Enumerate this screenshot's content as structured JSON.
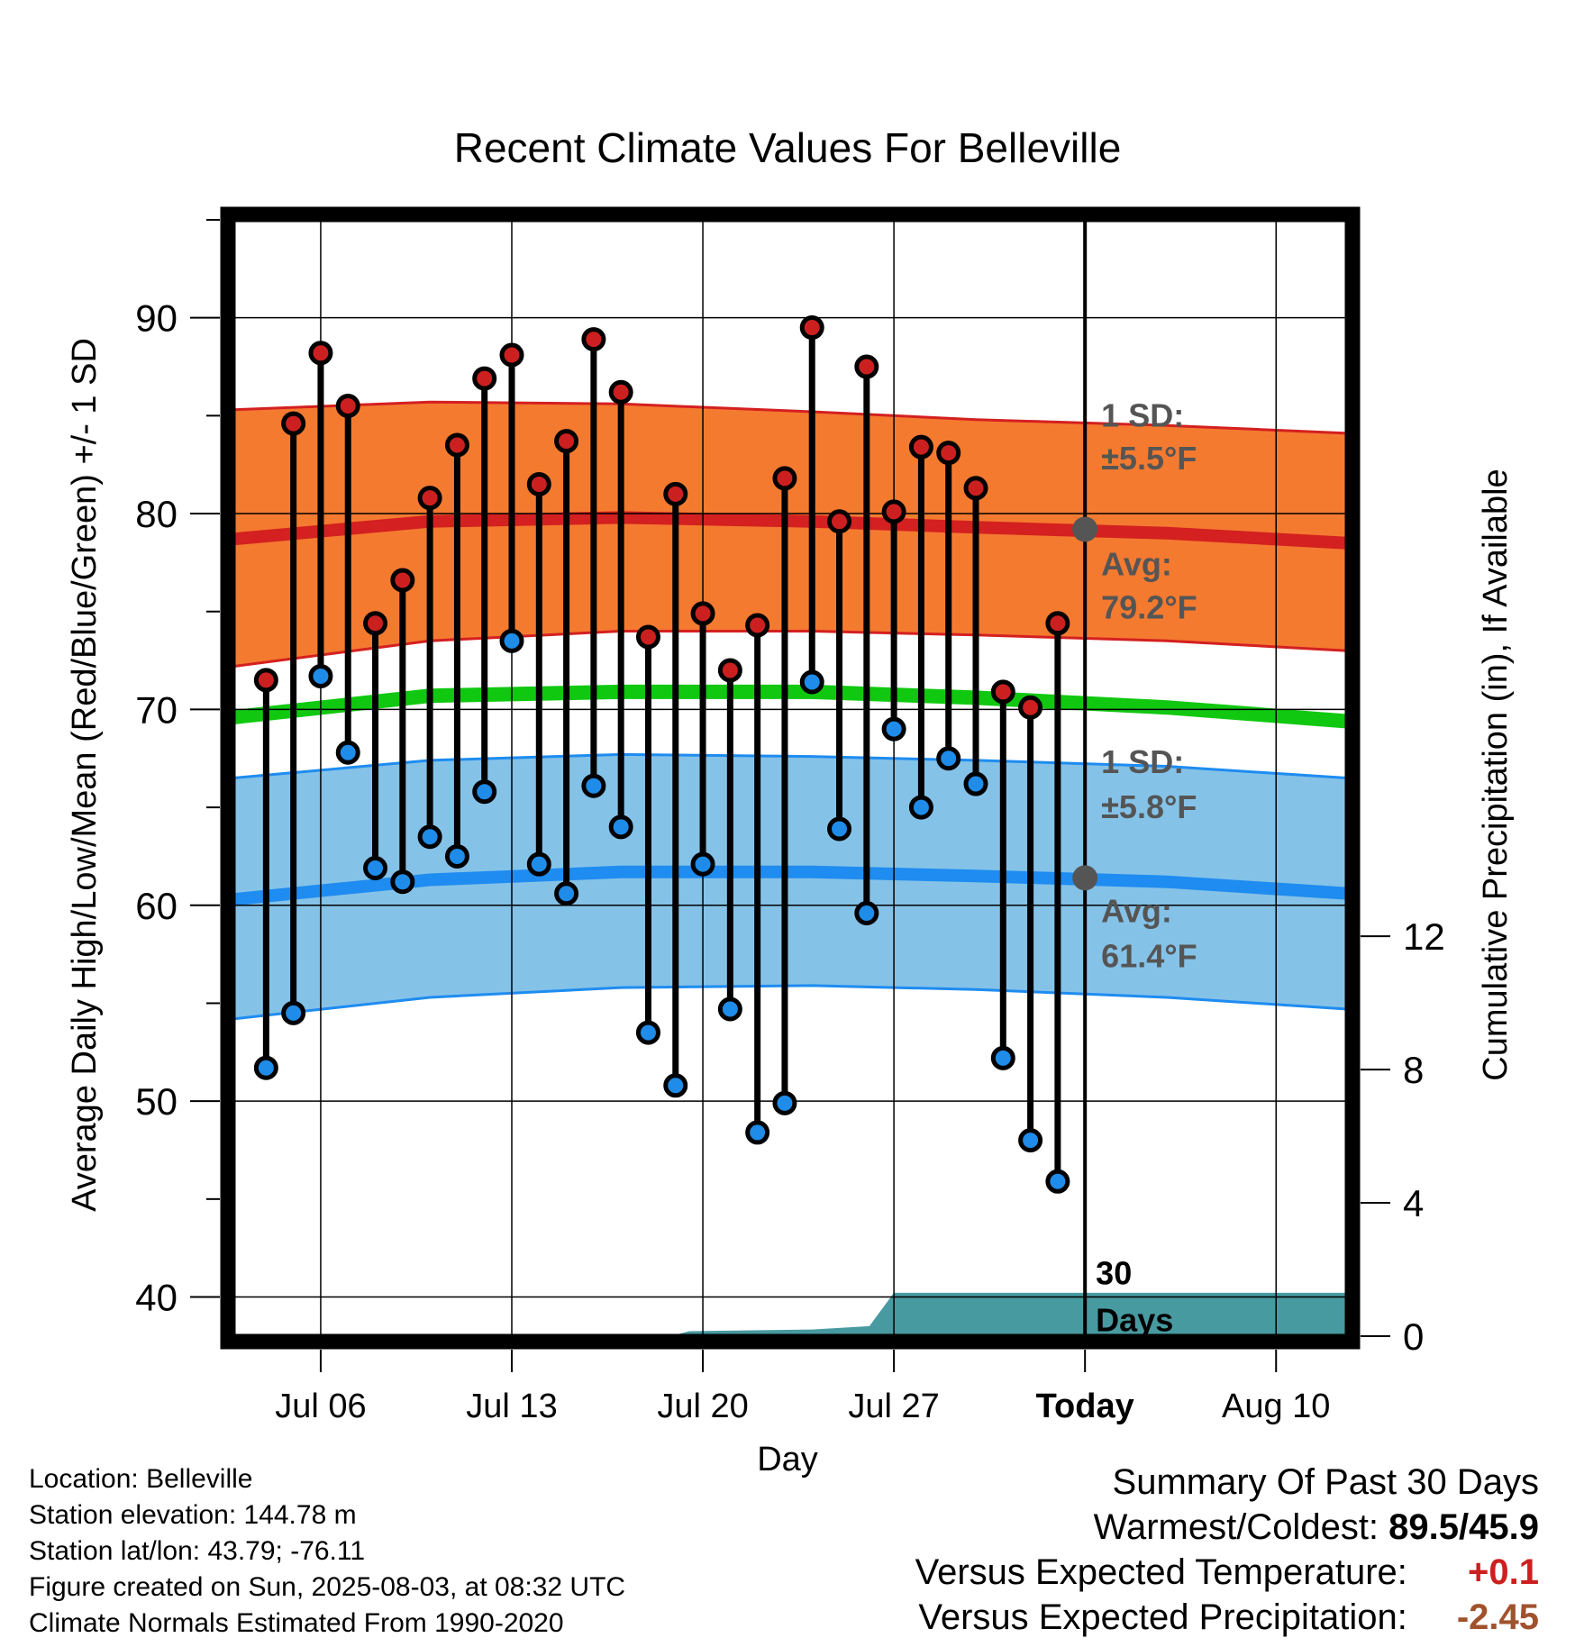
{
  "chart_data": {
    "type": "line",
    "title": "Recent Climate Values For Belleville",
    "xlabel": "Day",
    "ylabel_left": "Average Daily High/Low/Mean (Red/Blue/Green) +/- 1 SD",
    "ylabel_right": "Cumulative Precipitation (in), If Available",
    "x_ticks": [
      {
        "label": "Jul 06",
        "day": 6
      },
      {
        "label": "Jul 13",
        "day": 13
      },
      {
        "label": "Jul 20",
        "day": 20
      },
      {
        "label": "Jul 27",
        "day": 27
      },
      {
        "label": "Today",
        "day": 34
      },
      {
        "label": "Aug 10",
        "day": 41
      }
    ],
    "x_range_days_from_jul1": [
      2.8,
      43.6
    ],
    "today_day": 34,
    "today_label": "Today",
    "temp_ticks": [
      40,
      50,
      60,
      70,
      80,
      90
    ],
    "ylim": [
      38,
      95
    ],
    "precip_ticks": [
      0,
      4,
      8,
      12
    ],
    "precip_range": [
      0,
      33.5
    ],
    "grid": true,
    "series": [
      {
        "name": "Daily High",
        "color": "#cc2020",
        "days": [
          4,
          5,
          6,
          7,
          8,
          9,
          10,
          11,
          12,
          13,
          14,
          15,
          16,
          17,
          18,
          19,
          20,
          21,
          22,
          23,
          24,
          25,
          26,
          27,
          28,
          29,
          30,
          31,
          32,
          33
        ],
        "values": [
          71.5,
          84.6,
          88.2,
          85.5,
          74.4,
          76.6,
          80.8,
          83.5,
          86.9,
          88.1,
          81.5,
          83.7,
          88.9,
          86.2,
          73.7,
          81.0,
          74.9,
          72.0,
          74.3,
          81.8,
          89.5,
          79.6,
          87.5,
          80.1,
          83.4,
          83.1,
          81.3,
          70.9,
          70.1,
          74.4
        ]
      },
      {
        "name": "Daily Low",
        "color": "#1e8ce8",
        "days": [
          4,
          5,
          6,
          7,
          8,
          9,
          10,
          11,
          12,
          13,
          14,
          15,
          16,
          17,
          18,
          19,
          20,
          21,
          22,
          23,
          24,
          25,
          26,
          27,
          28,
          29,
          30,
          31,
          32,
          33
        ],
        "values": [
          51.7,
          54.5,
          71.7,
          67.8,
          61.9,
          61.2,
          63.5,
          62.5,
          65.8,
          73.5,
          62.1,
          60.6,
          66.1,
          64.0,
          53.5,
          50.8,
          62.1,
          54.7,
          48.4,
          49.9,
          71.4,
          63.9,
          59.6,
          69.0,
          65.0,
          67.5,
          66.2,
          52.2,
          48.0,
          45.9
        ]
      },
      {
        "name": "Normal High",
        "color": "#d42020",
        "days": [
          2.8,
          10,
          17,
          24,
          30,
          37,
          43.6
        ],
        "values": [
          78.7,
          79.6,
          79.8,
          79.6,
          79.3,
          79.0,
          78.5
        ]
      },
      {
        "name": "Normal High +1 SD",
        "days": [
          2.8,
          10,
          17,
          24,
          30,
          37,
          43.6
        ],
        "values": [
          85.3,
          85.7,
          85.6,
          85.2,
          84.8,
          84.5,
          84.1
        ]
      },
      {
        "name": "Normal High -1 SD",
        "days": [
          2.8,
          10,
          17,
          24,
          30,
          37,
          43.6
        ],
        "values": [
          72.2,
          73.5,
          74.0,
          74.0,
          73.8,
          73.5,
          73.0
        ]
      },
      {
        "name": "Normal Mean",
        "color": "#10c810",
        "days": [
          2.8,
          10,
          17,
          24,
          30,
          37,
          43.6
        ],
        "values": [
          69.6,
          70.7,
          70.9,
          70.9,
          70.6,
          70.1,
          69.4
        ]
      },
      {
        "name": "Normal Low",
        "color": "#1e8cf0",
        "days": [
          2.8,
          10,
          17,
          24,
          30,
          37,
          43.6
        ],
        "values": [
          60.3,
          61.3,
          61.7,
          61.7,
          61.5,
          61.2,
          60.6
        ]
      },
      {
        "name": "Normal Low +1 SD",
        "days": [
          2.8,
          10,
          17,
          24,
          30,
          37,
          43.6
        ],
        "values": [
          66.5,
          67.4,
          67.7,
          67.6,
          67.4,
          67.1,
          66.5
        ]
      },
      {
        "name": "Normal Low -1 SD",
        "days": [
          2.8,
          10,
          17,
          24,
          30,
          37,
          43.6
        ],
        "values": [
          54.2,
          55.3,
          55.8,
          55.9,
          55.7,
          55.3,
          54.7
        ]
      },
      {
        "name": "Cumulative Precipitation",
        "color": "#479aa0",
        "days": [
          2.8,
          18.8,
          19.5,
          24,
          26.1,
          27,
          43.6
        ],
        "values": [
          0,
          0,
          0.15,
          0.2,
          0.3,
          1.3,
          1.3
        ]
      }
    ],
    "annotations": {
      "high_sd_label": "1 SD:",
      "high_sd_value": "±5.5°F",
      "high_avg_label": "Avg:",
      "high_avg_value": "79.2°F",
      "low_sd_label": "1 SD:",
      "low_sd_value": "±5.8°F",
      "low_avg_label": "Avg:",
      "low_avg_value": "61.4°F",
      "today_high_avg": 79.2,
      "today_low_avg": 61.4,
      "days_label_1": "30",
      "days_label_2": "Days"
    }
  },
  "footer": {
    "location": "Location: Belleville",
    "elevation": "Station elevation: 144.78 m",
    "latlon": "Station lat/lon: 43.79; -76.11",
    "created": "Figure created on Sun, 2025-08-03, at 08:32 UTC",
    "normals": "Climate Normals Estimated From 1990-2020"
  },
  "summary": {
    "heading": "Summary Of Past 30 Days",
    "warm_cold_label": "Warmest/Coldest:",
    "warm_cold_value": "89.5/45.9",
    "temp_label": "Versus Expected Temperature:",
    "temp_value": "+0.1",
    "temp_color": "#cc2020",
    "precip_label": "Versus Expected Precipitation:",
    "precip_value": "-2.45",
    "precip_color": "#a0522d"
  }
}
